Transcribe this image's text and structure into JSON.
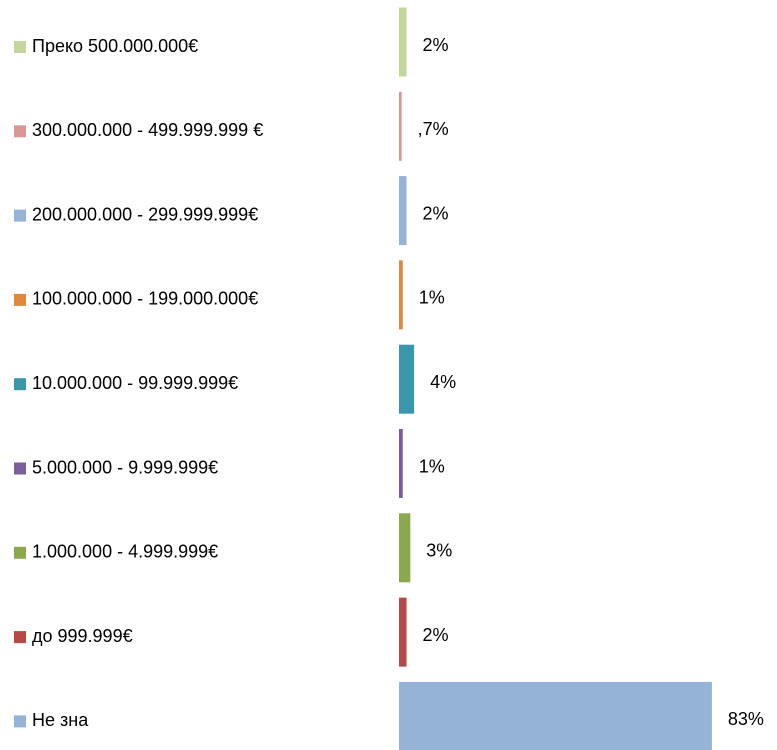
{
  "chart_data": {
    "type": "bar",
    "orientation": "horizontal",
    "categories": [
      "Преко 500.000.000€",
      "300.000.000 - 499.999.999 €",
      "200.000.000 - 299.999.999€",
      "100.000.000 - 199.000.000€",
      "10.000.000 - 99.999.999€",
      "5.000.000 - 9.999.999€",
      "1.000.000 - 4.999.999€",
      "до 999.999€",
      "Не зна"
    ],
    "values": [
      2,
      0.7,
      2,
      1,
      4,
      1,
      3,
      2,
      83
    ],
    "value_labels": [
      "2%",
      ",7%",
      "2%",
      "1%",
      "4%",
      "1%",
      "3%",
      "2%",
      "83%"
    ],
    "colors": [
      "#c3d69b",
      "#d99694",
      "#95b3d7",
      "#e0893d",
      "#3a96ad",
      "#7a5f9a",
      "#8aa94c",
      "#b74a46",
      "#95b3d7"
    ]
  }
}
